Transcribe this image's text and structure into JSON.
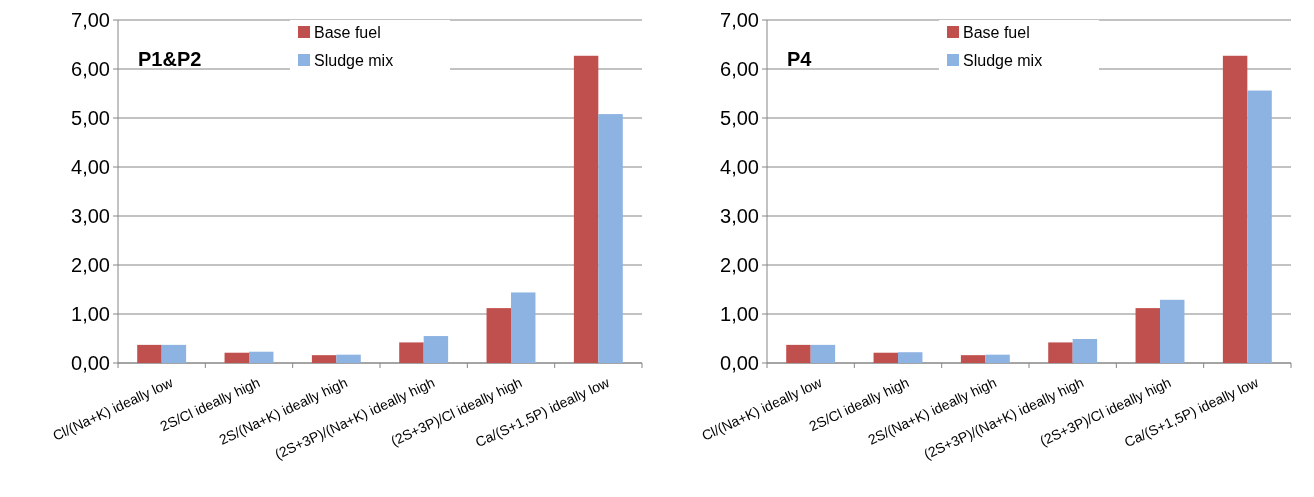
{
  "chart_data": [
    {
      "type": "bar",
      "title": "P1&P2",
      "categories": [
        "Cl/(Na+K) ideally low",
        "2S/Cl ideally high",
        "2S/(Na+K) ideally high",
        "(2S+3P)/(Na+K) ideally high",
        "(2S+3P)/Cl ideally high",
        "Ca/(S+1,5P) ideally low"
      ],
      "series": [
        {
          "name": "Base fuel",
          "color": "#c0504d",
          "values": [
            0.37,
            0.21,
            0.16,
            0.42,
            1.12,
            6.27
          ]
        },
        {
          "name": "Sludge mix",
          "color": "#8db3e2",
          "values": [
            0.37,
            0.23,
            0.17,
            0.55,
            1.44,
            5.08
          ]
        }
      ],
      "ylim": [
        0,
        7
      ],
      "yticks": [
        {
          "value": 0,
          "label": "0,00"
        },
        {
          "value": 1,
          "label": "1,00"
        },
        {
          "value": 2,
          "label": "2,00"
        },
        {
          "value": 3,
          "label": "3,00"
        },
        {
          "value": 4,
          "label": "4,00"
        },
        {
          "value": 5,
          "label": "5,00"
        },
        {
          "value": 6,
          "label": "6,00"
        },
        {
          "value": 7,
          "label": "7,00"
        }
      ],
      "grid": "y",
      "legend": "top"
    },
    {
      "type": "bar",
      "title": "P4",
      "categories": [
        "Cl/(Na+K) ideally low",
        "2S/Cl ideally high",
        "2S/(Na+K) ideally high",
        "(2S+3P)/(Na+K) ideally high",
        "(2S+3P)/Cl ideally high",
        "Ca/(S+1,5P) ideally low"
      ],
      "series": [
        {
          "name": "Base fuel",
          "color": "#c0504d",
          "values": [
            0.37,
            0.21,
            0.16,
            0.42,
            1.12,
            6.27
          ]
        },
        {
          "name": "Sludge mix",
          "color": "#8db3e2",
          "values": [
            0.37,
            0.22,
            0.17,
            0.49,
            1.29,
            5.56
          ]
        }
      ],
      "ylim": [
        0,
        7
      ],
      "yticks": [
        {
          "value": 0,
          "label": "0,00"
        },
        {
          "value": 1,
          "label": "1,00"
        },
        {
          "value": 2,
          "label": "2,00"
        },
        {
          "value": 3,
          "label": "3,00"
        },
        {
          "value": 4,
          "label": "4,00"
        },
        {
          "value": 5,
          "label": "5,00"
        },
        {
          "value": 6,
          "label": "6,00"
        },
        {
          "value": 7,
          "label": "7,00"
        }
      ],
      "grid": "y",
      "legend": "top"
    }
  ]
}
